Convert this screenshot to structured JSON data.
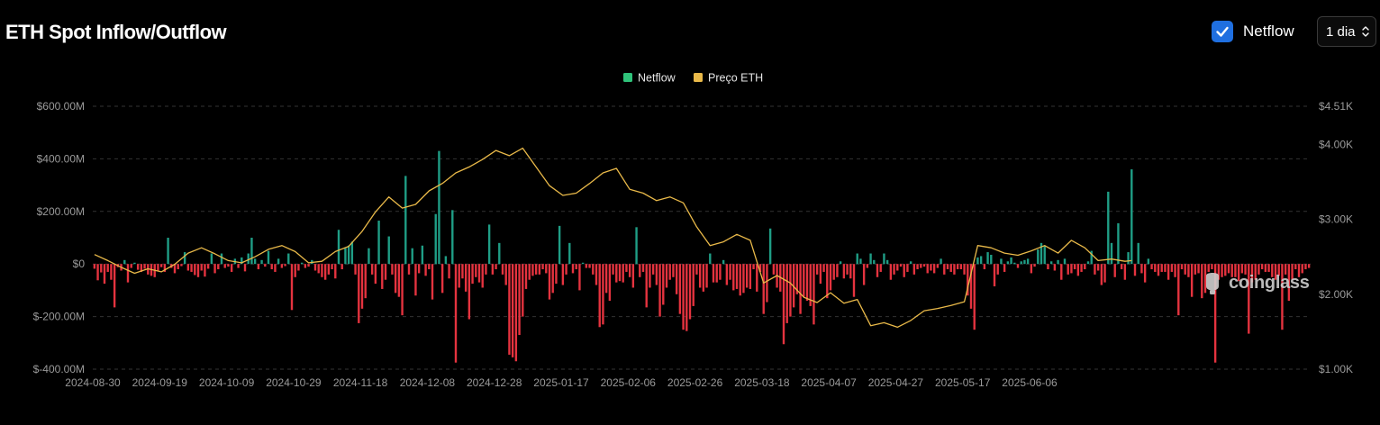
{
  "header": {
    "title": "ETH Spot Inflow/Outflow",
    "netflow_toggle_label": "Netflow",
    "netflow_checked": true,
    "period_value": "1 dia"
  },
  "watermark": "coinglass",
  "colors": {
    "positive": "#1f9e86",
    "negative": "#e5333f",
    "price_line": "#e9b949",
    "legend_netflow": "#2fc27a",
    "legend_price": "#e9b949",
    "axis_text": "#9a9a9a",
    "grid": "#333333"
  },
  "chart_data": {
    "type": "bar",
    "title": "ETH Spot Inflow/Outflow",
    "legend": [
      {
        "name": "Netflow",
        "color": "#2fc27a"
      },
      {
        "name": "Preço ETH",
        "color": "#e9b949"
      }
    ],
    "legend_position": "top-center",
    "left_axis": {
      "ylim": [
        -400000000,
        600000000
      ],
      "ticks": [
        {
          "value": 600000000,
          "label": "$600.00M"
        },
        {
          "value": 400000000,
          "label": "$400.00M"
        },
        {
          "value": 200000000,
          "label": "$200.00M"
        },
        {
          "value": 0,
          "label": "$0"
        },
        {
          "value": -200000000,
          "label": "$-200.00M"
        },
        {
          "value": -400000000,
          "label": "$-400.00M"
        }
      ]
    },
    "right_axis": {
      "ylim": [
        1000,
        4510
      ],
      "ticks": [
        {
          "value": 4510,
          "label": "$4.51K"
        },
        {
          "value": 4000,
          "label": "$4.00K"
        },
        {
          "value": 3000,
          "label": "$3.00K"
        },
        {
          "value": 2000,
          "label": "$2.00K"
        },
        {
          "value": 1000,
          "label": "$1.00K"
        }
      ]
    },
    "x_ticks": [
      "2024-08-30",
      "2024-09-19",
      "2024-10-09",
      "2024-10-29",
      "2024-11-18",
      "2024-12-08",
      "2024-12-28",
      "2025-01-17",
      "2025-02-06",
      "2025-02-26",
      "2025-03-18",
      "2025-04-07",
      "2025-04-27",
      "2025-05-17",
      "2025-06-06"
    ],
    "x_tick_step_days": 20,
    "grid": true,
    "series": [
      {
        "name": "Netflow",
        "unit": "USD millions",
        "values": [
          -18,
          -62,
          -32,
          -75,
          -30,
          -60,
          -165,
          -12,
          -25,
          15,
          -70,
          -15,
          5,
          -22,
          -30,
          -18,
          -40,
          -45,
          -50,
          -25,
          -12,
          -30,
          100,
          -15,
          -35,
          -20,
          -8,
          45,
          -25,
          -30,
          -42,
          -50,
          -25,
          -48,
          -18,
          40,
          -35,
          -20,
          40,
          -15,
          -10,
          -30,
          20,
          -15,
          25,
          -28,
          40,
          100,
          20,
          -20,
          15,
          -10,
          50,
          -20,
          -30,
          20,
          -15,
          -8,
          40,
          -175,
          -50,
          -25,
          5,
          -15,
          -10,
          15,
          -25,
          -35,
          -50,
          -60,
          -40,
          -20,
          -55,
          130,
          -20,
          60,
          70,
          85,
          -40,
          -225,
          -170,
          -130,
          60,
          -40,
          -75,
          165,
          -95,
          -60,
          105,
          -40,
          -110,
          -125,
          -195,
          335,
          -40,
          60,
          -120,
          -35,
          70,
          -45,
          -20,
          -135,
          190,
          430,
          -110,
          30,
          -55,
          205,
          -375,
          -90,
          -55,
          -105,
          -210,
          -75,
          -50,
          -70,
          -90,
          -40,
          150,
          -40,
          -20,
          80,
          -40,
          -80,
          -345,
          -355,
          -370,
          -270,
          -200,
          -95,
          -60,
          -45,
          -40,
          -40,
          -20,
          -35,
          -135,
          -110,
          -75,
          145,
          -80,
          -40,
          80,
          -35,
          -20,
          -100,
          5,
          -15,
          -15,
          -40,
          -80,
          -240,
          -230,
          -110,
          -140,
          -40,
          -70,
          -65,
          -70,
          -30,
          -50,
          -90,
          140,
          -50,
          -30,
          -165,
          -90,
          -40,
          -80,
          -200,
          -155,
          -90,
          -60,
          -50,
          -115,
          -190,
          -250,
          -255,
          -210,
          -160,
          -40,
          -90,
          -105,
          -90,
          40,
          -70,
          -70,
          -60,
          15,
          -80,
          -60,
          -100,
          -95,
          -120,
          -110,
          -90,
          -95,
          -20,
          -105,
          -30,
          -190,
          -145,
          135,
          -40,
          -90,
          -105,
          -305,
          -225,
          -200,
          -165,
          -115,
          -190,
          -125,
          -140,
          -160,
          -230,
          -40,
          -75,
          -30,
          -130,
          -100,
          -60,
          -50,
          10,
          -55,
          -40,
          -55,
          -125,
          40,
          20,
          -80,
          -15,
          40,
          15,
          -50,
          -30,
          40,
          15,
          -60,
          -40,
          -25,
          -10,
          -50,
          -30,
          10,
          -40,
          -20,
          -15,
          -10,
          -35,
          -25,
          -35,
          -15,
          20,
          -40,
          -20,
          -30,
          -40,
          -20,
          -20,
          -40,
          -120,
          -170,
          -250,
          25,
          30,
          -20,
          45,
          35,
          -85,
          -40,
          20,
          -30,
          10,
          25,
          5,
          -15,
          10,
          15,
          20,
          -35,
          -10,
          55,
          80,
          70,
          -20,
          10,
          -25,
          15,
          -60,
          20,
          -40,
          -35,
          -20,
          -45,
          -30,
          -20,
          10,
          50,
          -40,
          -25,
          -80,
          -70,
          275,
          80,
          -50,
          155,
          -20,
          -60,
          45,
          360,
          -45,
          80,
          -35,
          -70,
          20,
          -20,
          -30,
          -45,
          -30,
          -30,
          -60,
          -30,
          -50,
          -195,
          -20,
          -40,
          -50,
          -125,
          -40,
          -35,
          -130,
          -110,
          -30,
          -20,
          -375,
          -60,
          -50,
          -45,
          -35,
          -50,
          -50,
          -65,
          -35,
          -40,
          -265,
          -70,
          -60,
          -40,
          -20,
          -30,
          -30,
          -50,
          -60,
          -45,
          -250,
          -40,
          -140,
          -60,
          -20,
          -50,
          -35,
          -20,
          -15
        ],
        "color_positive": "#1f9e86",
        "color_negative": "#e5333f"
      },
      {
        "name": "Preço ETH",
        "unit": "USD",
        "points": [
          [
            0,
            2530
          ],
          [
            4,
            2450
          ],
          [
            8,
            2360
          ],
          [
            12,
            2280
          ],
          [
            16,
            2340
          ],
          [
            20,
            2300
          ],
          [
            24,
            2400
          ],
          [
            28,
            2550
          ],
          [
            32,
            2620
          ],
          [
            36,
            2540
          ],
          [
            40,
            2450
          ],
          [
            44,
            2420
          ],
          [
            48,
            2500
          ],
          [
            52,
            2600
          ],
          [
            56,
            2650
          ],
          [
            60,
            2570
          ],
          [
            64,
            2420
          ],
          [
            68,
            2440
          ],
          [
            72,
            2570
          ],
          [
            76,
            2640
          ],
          [
            80,
            2840
          ],
          [
            84,
            3100
          ],
          [
            88,
            3300
          ],
          [
            92,
            3150
          ],
          [
            96,
            3200
          ],
          [
            100,
            3380
          ],
          [
            104,
            3480
          ],
          [
            108,
            3620
          ],
          [
            112,
            3700
          ],
          [
            116,
            3800
          ],
          [
            120,
            3920
          ],
          [
            124,
            3850
          ],
          [
            128,
            3950
          ],
          [
            132,
            3700
          ],
          [
            136,
            3450
          ],
          [
            140,
            3320
          ],
          [
            144,
            3350
          ],
          [
            148,
            3480
          ],
          [
            152,
            3620
          ],
          [
            156,
            3680
          ],
          [
            160,
            3400
          ],
          [
            164,
            3350
          ],
          [
            168,
            3250
          ],
          [
            172,
            3300
          ],
          [
            176,
            3220
          ],
          [
            180,
            2900
          ],
          [
            184,
            2650
          ],
          [
            188,
            2700
          ],
          [
            192,
            2800
          ],
          [
            196,
            2720
          ],
          [
            200,
            2150
          ],
          [
            204,
            2250
          ],
          [
            208,
            2150
          ],
          [
            212,
            1960
          ],
          [
            216,
            1890
          ],
          [
            220,
            2020
          ],
          [
            224,
            1880
          ],
          [
            228,
            1930
          ],
          [
            232,
            1580
          ],
          [
            236,
            1620
          ],
          [
            240,
            1560
          ],
          [
            244,
            1650
          ],
          [
            248,
            1780
          ],
          [
            252,
            1810
          ],
          [
            256,
            1850
          ],
          [
            260,
            1900
          ],
          [
            264,
            2650
          ],
          [
            268,
            2620
          ],
          [
            272,
            2550
          ],
          [
            276,
            2520
          ],
          [
            280,
            2580
          ],
          [
            284,
            2650
          ],
          [
            288,
            2550
          ],
          [
            292,
            2720
          ],
          [
            296,
            2620
          ],
          [
            300,
            2450
          ],
          [
            304,
            2470
          ],
          [
            308,
            2440
          ],
          [
            310,
            2450
          ]
        ]
      }
    ]
  }
}
